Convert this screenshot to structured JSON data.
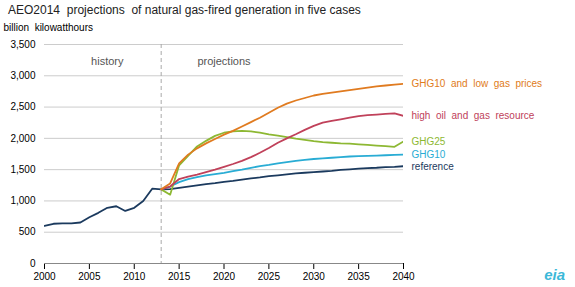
{
  "chart_data": {
    "type": "line",
    "title": "AEO2014  projections  of natural gas-fired generation in five cases",
    "ylabel": "billion  kilowatthours",
    "x": [
      2000,
      2001,
      2002,
      2003,
      2004,
      2005,
      2006,
      2007,
      2008,
      2009,
      2010,
      2011,
      2012,
      2013,
      2014,
      2015,
      2016,
      2017,
      2018,
      2019,
      2020,
      2021,
      2022,
      2023,
      2024,
      2025,
      2026,
      2027,
      2028,
      2029,
      2030,
      2031,
      2032,
      2033,
      2034,
      2035,
      2036,
      2037,
      2038,
      2039,
      2040
    ],
    "xlim": [
      2000,
      2040
    ],
    "xticks": [
      2000,
      2005,
      2010,
      2015,
      2020,
      2025,
      2030,
      2035,
      2040
    ],
    "ylim": [
      0,
      3500
    ],
    "yticks": [
      0,
      500,
      {
        "value": 1000,
        "label": "1,000"
      },
      {
        "value": 1500,
        "label": "1,500"
      },
      {
        "value": 2000,
        "label": "2,000"
      },
      {
        "value": 2500,
        "label": "2,500"
      },
      {
        "value": 3000,
        "label": "3,000"
      },
      {
        "value": 3500,
        "label": "3,500"
      }
    ],
    "grid": true,
    "series": [
      {
        "name": "reference",
        "color": "#1b3a5e",
        "values": [
          600,
          635,
          640,
          640,
          655,
          740,
          810,
          890,
          915,
          840,
          890,
          1000,
          1195,
          1185,
          1190,
          1210,
          1230,
          1250,
          1270,
          1285,
          1305,
          1320,
          1340,
          1360,
          1375,
          1395,
          1410,
          1425,
          1440,
          1450,
          1460,
          1470,
          1480,
          1495,
          1505,
          1515,
          1525,
          1530,
          1540,
          1545,
          1555
        ]
      },
      {
        "name": "GHG10",
        "color": "#29acd4",
        "values": [
          null,
          null,
          null,
          null,
          null,
          null,
          null,
          null,
          null,
          null,
          null,
          null,
          null,
          1185,
          1230,
          1300,
          1350,
          1380,
          1410,
          1430,
          1450,
          1475,
          1500,
          1530,
          1555,
          1575,
          1600,
          1620,
          1640,
          1655,
          1670,
          1680,
          1690,
          1700,
          1710,
          1715,
          1720,
          1725,
          1730,
          1735,
          1740
        ]
      },
      {
        "name": "GHG25",
        "color": "#8db833",
        "values": [
          null,
          null,
          null,
          null,
          null,
          null,
          null,
          null,
          null,
          null,
          null,
          null,
          null,
          1185,
          1100,
          1570,
          1720,
          1870,
          1960,
          2040,
          2090,
          2110,
          2120,
          2110,
          2090,
          2065,
          2045,
          2020,
          1995,
          1975,
          1955,
          1940,
          1930,
          1920,
          1915,
          1905,
          1895,
          1885,
          1875,
          1865,
          1950
        ]
      },
      {
        "name": "high  oil  and  gas  resource",
        "color": "#c0415a",
        "values": [
          null,
          null,
          null,
          null,
          null,
          null,
          null,
          null,
          null,
          null,
          null,
          null,
          null,
          1185,
          1230,
          1350,
          1390,
          1420,
          1460,
          1500,
          1545,
          1590,
          1640,
          1700,
          1770,
          1845,
          1930,
          2000,
          2065,
          2135,
          2200,
          2250,
          2280,
          2305,
          2330,
          2355,
          2370,
          2380,
          2390,
          2400,
          2360
        ]
      },
      {
        "name": "GHG10  and  low  gas  prices",
        "color": "#e07b20",
        "values": [
          null,
          null,
          null,
          null,
          null,
          null,
          null,
          null,
          null,
          null,
          null,
          null,
          null,
          1185,
          1280,
          1600,
          1740,
          1840,
          1920,
          1990,
          2060,
          2120,
          2190,
          2260,
          2330,
          2410,
          2490,
          2555,
          2605,
          2645,
          2685,
          2710,
          2730,
          2750,
          2770,
          2790,
          2810,
          2830,
          2845,
          2860,
          2870
        ]
      }
    ],
    "annotations": [
      {
        "text": "history",
        "x": 2007.0,
        "y": 3230
      },
      {
        "text": "projections",
        "x": 2020.0,
        "y": 3230
      }
    ],
    "history_end": 2013,
    "logo": {
      "text": "eia",
      "color": "#3cb8d8"
    }
  }
}
